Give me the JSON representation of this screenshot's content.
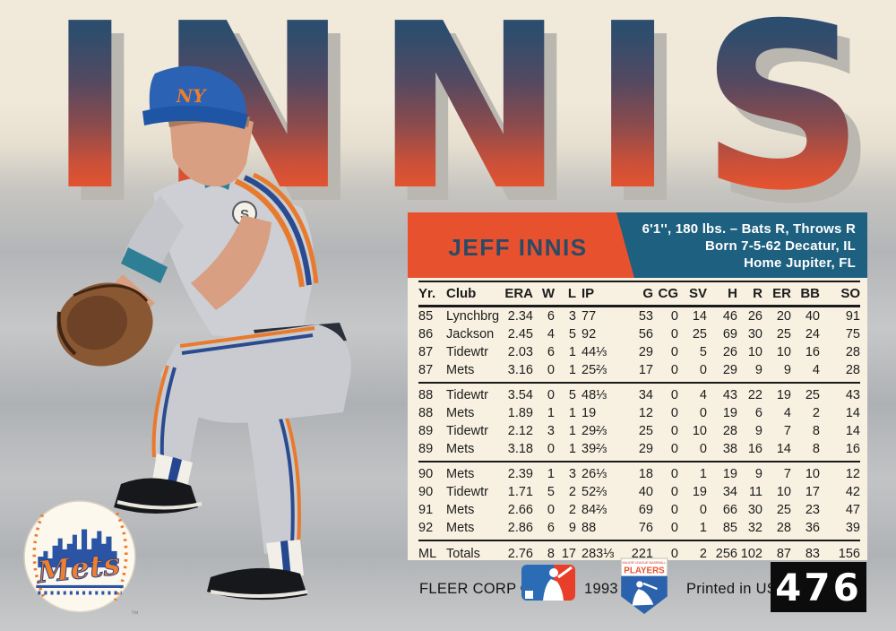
{
  "card": {
    "title": "INNIS",
    "player_name": "JEFF INNIS",
    "bio_lines": [
      "6'1'', 180 lbs. – Bats R, Throws R",
      "Born 7-5-62 Decatur, IL",
      "Home Jupiter, FL"
    ],
    "team_logo_text": "Mets",
    "cap_logo": "NY",
    "jersey_patch_letter": "S",
    "trademark": "™"
  },
  "stats": {
    "columns": [
      "Yr.",
      "Club",
      "ERA",
      "W",
      "L",
      "IP",
      "G",
      "CG",
      "SV",
      "H",
      "R",
      "ER",
      "BB",
      "SO"
    ],
    "groups": [
      [
        [
          "85",
          "Lynchbrg",
          "2.34",
          "6",
          "3",
          "77",
          "53",
          "0",
          "14",
          "46",
          "26",
          "20",
          "40",
          "91"
        ],
        [
          "86",
          "Jackson",
          "2.45",
          "4",
          "5",
          "92",
          "56",
          "0",
          "25",
          "69",
          "30",
          "25",
          "24",
          "75"
        ],
        [
          "87",
          "Tidewtr",
          "2.03",
          "6",
          "1",
          "44⅓",
          "29",
          "0",
          "5",
          "26",
          "10",
          "10",
          "16",
          "28"
        ],
        [
          "87",
          "Mets",
          "3.16",
          "0",
          "1",
          "25⅔",
          "17",
          "0",
          "0",
          "29",
          "9",
          "9",
          "4",
          "28"
        ]
      ],
      [
        [
          "88",
          "Tidewtr",
          "3.54",
          "0",
          "5",
          "48⅓",
          "34",
          "0",
          "4",
          "43",
          "22",
          "19",
          "25",
          "43"
        ],
        [
          "88",
          "Mets",
          "1.89",
          "1",
          "1",
          "19",
          "12",
          "0",
          "0",
          "19",
          "6",
          "4",
          "2",
          "14"
        ],
        [
          "89",
          "Tidewtr",
          "2.12",
          "3",
          "1",
          "29⅔",
          "25",
          "0",
          "10",
          "28",
          "9",
          "7",
          "8",
          "14"
        ],
        [
          "89",
          "Mets",
          "3.18",
          "0",
          "1",
          "39⅔",
          "29",
          "0",
          "0",
          "38",
          "16",
          "14",
          "8",
          "16"
        ]
      ],
      [
        [
          "90",
          "Mets",
          "2.39",
          "1",
          "3",
          "26⅓",
          "18",
          "0",
          "1",
          "19",
          "9",
          "7",
          "10",
          "12"
        ],
        [
          "90",
          "Tidewtr",
          "1.71",
          "5",
          "2",
          "52⅔",
          "40",
          "0",
          "19",
          "34",
          "11",
          "10",
          "17",
          "42"
        ],
        [
          "91",
          "Mets",
          "2.66",
          "0",
          "2",
          "84⅔",
          "69",
          "0",
          "0",
          "66",
          "30",
          "25",
          "23",
          "47"
        ],
        [
          "92",
          "Mets",
          "2.86",
          "6",
          "9",
          "88",
          "76",
          "0",
          "1",
          "85",
          "32",
          "28",
          "36",
          "39"
        ]
      ]
    ],
    "totals": [
      "ML",
      "Totals",
      "2.76",
      "8",
      "17",
      "283⅓",
      "221",
      "0",
      "2",
      "256",
      "102",
      "87",
      "83",
      "156"
    ]
  },
  "footer": {
    "publisher": "FLEER CORP ©",
    "year": "1993",
    "printed": "Printed in USA",
    "card_number": "476",
    "players_association_top": "MAJOR LEAGUE BASEBALL",
    "players_association": "PLAYERS"
  },
  "colors": {
    "header_orange": "#e8512e",
    "header_blue": "#1e6080",
    "panel_cream": "#f8f1e1",
    "name_navy": "#2a4a66",
    "title_gradient_top": "#1f4e71",
    "title_gradient_bottom": "#ef5a2f",
    "title_shadow": "#bab7b0",
    "card_number_bg": "#0c0c0c"
  }
}
